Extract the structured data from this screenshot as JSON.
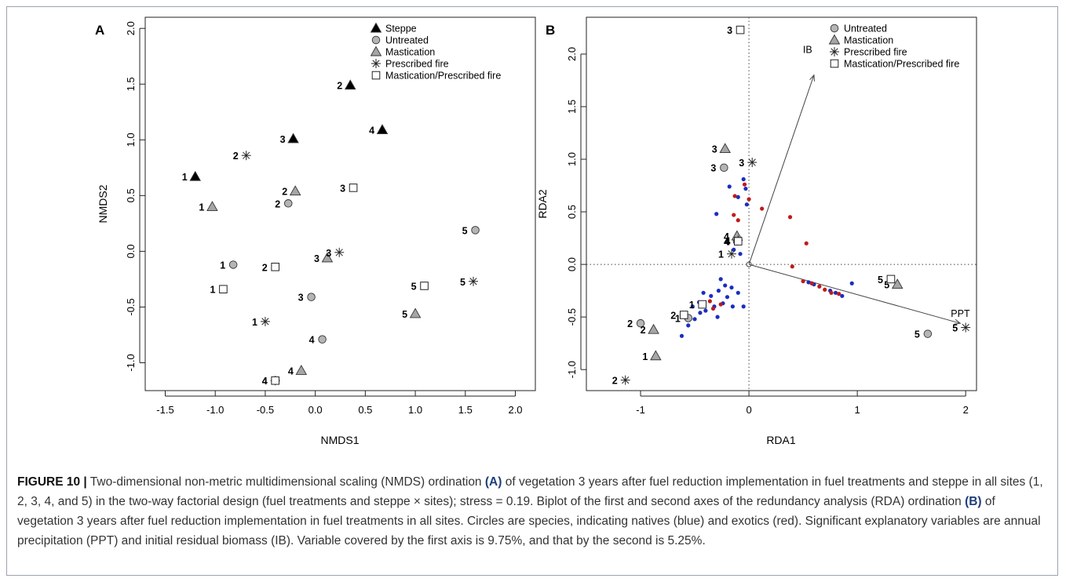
{
  "chart_data": [
    {
      "type": "scatter",
      "panel_label": "A",
      "xlabel": "NMDS1",
      "ylabel": "NMDS2",
      "xlim": [
        -1.7,
        2.2
      ],
      "ylim": [
        -1.25,
        2.1
      ],
      "xticks": [
        "-1.5",
        "-1.0",
        "-0.5",
        "0.0",
        "0.5",
        "1.0",
        "1.5",
        "2.0"
      ],
      "yticks": [
        "-1.0",
        "-0.5",
        "0.0",
        "0.5",
        "1.0",
        "1.5",
        "2.0"
      ],
      "grid": false,
      "legend_position": "top-right",
      "legend": [
        "Steppe",
        "Untreated",
        "Mastication",
        "Prescribed fire",
        "Mastication/Prescribed fire"
      ],
      "series": [
        {
          "name": "Steppe",
          "marker": "triangle-filled",
          "points": [
            {
              "label": "1",
              "x": -1.2,
              "y": 0.67
            },
            {
              "label": "2",
              "x": 0.35,
              "y": 1.49
            },
            {
              "label": "3",
              "x": -0.22,
              "y": 1.01
            },
            {
              "label": "4",
              "x": 0.67,
              "y": 1.09
            }
          ]
        },
        {
          "name": "Untreated",
          "marker": "circle",
          "points": [
            {
              "label": "1",
              "x": -0.82,
              "y": -0.12
            },
            {
              "label": "2",
              "x": -0.27,
              "y": 0.43
            },
            {
              "label": "3",
              "x": -0.04,
              "y": -0.41
            },
            {
              "label": "4",
              "x": 0.07,
              "y": -0.79
            },
            {
              "label": "5",
              "x": 1.6,
              "y": 0.19
            }
          ]
        },
        {
          "name": "Mastication",
          "marker": "triangle-gray",
          "points": [
            {
              "label": "1",
              "x": -1.03,
              "y": 0.4
            },
            {
              "label": "2",
              "x": -0.2,
              "y": 0.54
            },
            {
              "label": "3",
              "x": 0.12,
              "y": -0.06
            },
            {
              "label": "4",
              "x": -0.14,
              "y": -1.07
            },
            {
              "label": "5",
              "x": 1.0,
              "y": -0.56
            }
          ]
        },
        {
          "name": "Prescribed fire",
          "marker": "asterisk",
          "points": [
            {
              "label": "1",
              "x": -0.5,
              "y": -0.63
            },
            {
              "label": "2",
              "x": -0.69,
              "y": 0.86
            },
            {
              "label": "3",
              "x": 0.24,
              "y": -0.01
            },
            {
              "label": "4",
              "x": -0.4,
              "y": -1.16
            },
            {
              "label": "5",
              "x": 1.58,
              "y": -0.27
            }
          ]
        },
        {
          "name": "Mastication/Prescribed fire",
          "marker": "square",
          "points": [
            {
              "label": "1",
              "x": -0.92,
              "y": -0.34
            },
            {
              "label": "2",
              "x": -0.4,
              "y": -0.14
            },
            {
              "label": "3",
              "x": 0.38,
              "y": 0.57
            },
            {
              "label": "4",
              "x": -0.4,
              "y": -1.16
            },
            {
              "label": "5",
              "x": 1.09,
              "y": -0.31
            }
          ]
        }
      ]
    },
    {
      "type": "scatter",
      "panel_label": "B",
      "xlabel": "RDA1",
      "ylabel": "RDA2",
      "xlim": [
        -1.5,
        2.1
      ],
      "ylim": [
        -1.2,
        2.35
      ],
      "xticks": [
        "-1",
        "0",
        "1",
        "2"
      ],
      "yticks": [
        "-1.0",
        "-0.5",
        "0.0",
        "0.5",
        "1.0",
        "1.5",
        "2.0"
      ],
      "grid": false,
      "reference_lines": {
        "x": 0,
        "y": 0,
        "style": "dotted"
      },
      "legend_position": "top-right",
      "legend": [
        "Untreated",
        "Mastication",
        "Prescribed fire",
        "Mastication/Prescribed fire"
      ],
      "vectors": [
        {
          "label": "IB",
          "x": 0.6,
          "y": 1.8
        },
        {
          "label": "PPT",
          "x": 1.95,
          "y": -0.56
        }
      ],
      "series": [
        {
          "name": "Untreated",
          "marker": "circle",
          "points": [
            {
              "label": "1",
              "x": -0.56,
              "y": -0.51
            },
            {
              "label": "2",
              "x": -1.0,
              "y": -0.56
            },
            {
              "label": "3",
              "x": -0.23,
              "y": 0.92
            },
            {
              "label": "4",
              "x": -0.11,
              "y": 0.22
            },
            {
              "label": "5",
              "x": 1.65,
              "y": -0.66
            }
          ]
        },
        {
          "name": "Mastication",
          "marker": "triangle-gray",
          "points": [
            {
              "label": "1",
              "x": -0.86,
              "y": -0.87
            },
            {
              "label": "2",
              "x": -0.88,
              "y": -0.62
            },
            {
              "label": "3",
              "x": -0.22,
              "y": 1.1
            },
            {
              "label": "4",
              "x": -0.11,
              "y": 0.27
            },
            {
              "label": "5",
              "x": 1.37,
              "y": -0.19
            }
          ]
        },
        {
          "name": "Prescribed fire",
          "marker": "asterisk",
          "points": [
            {
              "label": "1",
              "x": -0.16,
              "y": 0.1
            },
            {
              "label": "2",
              "x": -1.14,
              "y": -1.1
            },
            {
              "label": "3",
              "x": 0.03,
              "y": 0.97
            },
            {
              "label": "4",
              "x": -0.1,
              "y": 0.23
            },
            {
              "label": "5",
              "x": 2.0,
              "y": -0.6
            }
          ]
        },
        {
          "name": "Mastication/Prescribed fire",
          "marker": "square",
          "points": [
            {
              "label": "1",
              "x": -0.43,
              "y": -0.38
            },
            {
              "label": "2",
              "x": -0.6,
              "y": -0.48
            },
            {
              "label": "3",
              "x": -0.08,
              "y": 2.23
            },
            {
              "label": "4",
              "x": -0.1,
              "y": 0.22
            },
            {
              "label": "5",
              "x": 1.31,
              "y": -0.14
            }
          ]
        },
        {
          "name": "natives",
          "marker": "dot",
          "color": "#1a2ec0",
          "points": [
            {
              "x": -0.05,
              "y": 0.81
            },
            {
              "x": -0.03,
              "y": 0.72
            },
            {
              "x": -0.18,
              "y": 0.74
            },
            {
              "x": -0.1,
              "y": 0.64
            },
            {
              "x": -0.02,
              "y": 0.57
            },
            {
              "x": -0.3,
              "y": 0.48
            },
            {
              "x": -0.14,
              "y": 0.14
            },
            {
              "x": -0.08,
              "y": 0.1
            },
            {
              "x": -0.26,
              "y": -0.14
            },
            {
              "x": -0.42,
              "y": -0.27
            },
            {
              "x": -0.35,
              "y": -0.3
            },
            {
              "x": -0.28,
              "y": -0.25
            },
            {
              "x": -0.22,
              "y": -0.2
            },
            {
              "x": -0.16,
              "y": -0.22
            },
            {
              "x": -0.1,
              "y": -0.27
            },
            {
              "x": -0.32,
              "y": -0.4
            },
            {
              "x": -0.24,
              "y": -0.37
            },
            {
              "x": -0.2,
              "y": -0.31
            },
            {
              "x": -0.46,
              "y": -0.36
            },
            {
              "x": -0.52,
              "y": -0.4
            },
            {
              "x": -0.45,
              "y": -0.46
            },
            {
              "x": -0.4,
              "y": -0.44
            },
            {
              "x": -0.29,
              "y": -0.5
            },
            {
              "x": -0.15,
              "y": -0.4
            },
            {
              "x": -0.05,
              "y": -0.4
            },
            {
              "x": -0.62,
              "y": -0.68
            },
            {
              "x": -0.56,
              "y": -0.58
            },
            {
              "x": -0.5,
              "y": -0.52
            },
            {
              "x": 0.55,
              "y": -0.17
            },
            {
              "x": 0.6,
              "y": -0.19
            },
            {
              "x": 0.75,
              "y": -0.25
            },
            {
              "x": 0.8,
              "y": -0.27
            },
            {
              "x": 0.95,
              "y": -0.18
            },
            {
              "x": 0.86,
              "y": -0.3
            }
          ]
        },
        {
          "name": "exotics",
          "marker": "dot",
          "color": "#c01a1a",
          "points": [
            {
              "x": -0.04,
              "y": 0.76
            },
            {
              "x": -0.13,
              "y": 0.65
            },
            {
              "x": 0.0,
              "y": 0.62
            },
            {
              "x": 0.12,
              "y": 0.53
            },
            {
              "x": -0.14,
              "y": 0.47
            },
            {
              "x": -0.1,
              "y": 0.42
            },
            {
              "x": 0.38,
              "y": 0.45
            },
            {
              "x": 0.53,
              "y": 0.2
            },
            {
              "x": -0.36,
              "y": -0.35
            },
            {
              "x": -0.33,
              "y": -0.42
            },
            {
              "x": -0.26,
              "y": -0.38
            },
            {
              "x": 0.4,
              "y": -0.02
            },
            {
              "x": 0.5,
              "y": -0.16
            },
            {
              "x": 0.58,
              "y": -0.18
            },
            {
              "x": 0.65,
              "y": -0.21
            },
            {
              "x": 0.7,
              "y": -0.24
            },
            {
              "x": 0.76,
              "y": -0.27
            },
            {
              "x": 0.83,
              "y": -0.28
            }
          ]
        }
      ]
    }
  ],
  "caption": {
    "figure_label": "FIGURE 10 |",
    "seg1": " Two-dimensional non-metric multidimensional scaling (NMDS) ordination ",
    "ref_a": "(A)",
    "seg2": " of vegetation 3 years after fuel reduction implementation in fuel treatments and steppe in all sites (1, 2, 3, 4, and 5) in the two-way factorial design (fuel treatments and steppe × sites); stress = 0.19. Biplot of the first and second axes of the redundancy analysis (RDA) ordination ",
    "ref_b": "(B)",
    "seg3": " of vegetation 3 years after fuel reduction implementation in fuel treatments in all sites. Circles are species, indicating natives (blue) and exotics (red). Significant explanatory variables are annual precipitation (PPT) and initial residual biomass (IB). Variable covered by the first axis is 9.75%, and that by the second is 5.25%."
  }
}
